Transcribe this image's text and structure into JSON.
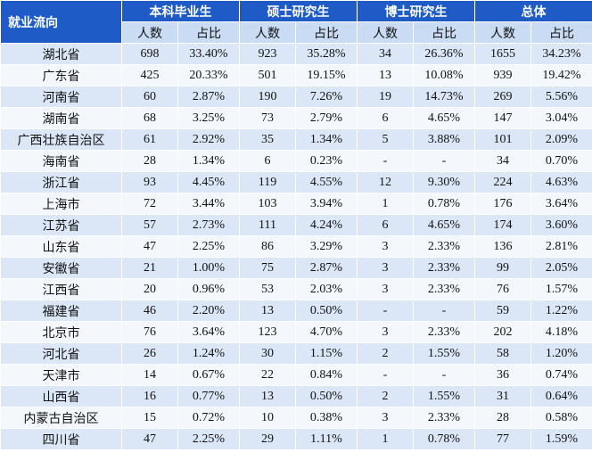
{
  "table": {
    "corner": "就业流向",
    "groups": [
      "本科毕业生",
      "硕士研究生",
      "博士研究生",
      "总体"
    ],
    "subheaders": [
      "人数",
      "占比",
      "人数",
      "占比",
      "人数",
      "占比",
      "人数",
      "占比"
    ],
    "rows": [
      [
        "湖北省",
        698,
        "33.40%",
        923,
        "35.28%",
        34,
        "26.36%",
        1655,
        "34.23%"
      ],
      [
        "广东省",
        425,
        "20.33%",
        501,
        "19.15%",
        13,
        "10.08%",
        939,
        "19.42%"
      ],
      [
        "河南省",
        60,
        "2.87%",
        190,
        "7.26%",
        19,
        "14.73%",
        269,
        "5.56%"
      ],
      [
        "湖南省",
        68,
        "3.25%",
        73,
        "2.79%",
        6,
        "4.65%",
        147,
        "3.04%"
      ],
      [
        "广西壮族自治区",
        61,
        "2.92%",
        35,
        "1.34%",
        5,
        "3.88%",
        101,
        "2.09%"
      ],
      [
        "海南省",
        28,
        "1.34%",
        6,
        "0.23%",
        "-",
        "-",
        34,
        "0.70%"
      ],
      [
        "浙江省",
        93,
        "4.45%",
        119,
        "4.55%",
        12,
        "9.30%",
        224,
        "4.63%"
      ],
      [
        "上海市",
        72,
        "3.44%",
        103,
        "3.94%",
        1,
        "0.78%",
        176,
        "3.64%"
      ],
      [
        "江苏省",
        57,
        "2.73%",
        111,
        "4.24%",
        6,
        "4.65%",
        174,
        "3.60%"
      ],
      [
        "山东省",
        47,
        "2.25%",
        86,
        "3.29%",
        3,
        "2.33%",
        136,
        "2.81%"
      ],
      [
        "安徽省",
        21,
        "1.00%",
        75,
        "2.87%",
        3,
        "2.33%",
        99,
        "2.05%"
      ],
      [
        "江西省",
        20,
        "0.96%",
        53,
        "2.03%",
        3,
        "2.33%",
        76,
        "1.57%"
      ],
      [
        "福建省",
        46,
        "2.20%",
        13,
        "0.50%",
        "-",
        "-",
        59,
        "1.22%"
      ],
      [
        "北京市",
        76,
        "3.64%",
        123,
        "4.70%",
        3,
        "2.33%",
        202,
        "4.18%"
      ],
      [
        "河北省",
        26,
        "1.24%",
        30,
        "1.15%",
        2,
        "1.55%",
        58,
        "1.20%"
      ],
      [
        "天津市",
        14,
        "0.67%",
        22,
        "0.84%",
        "-",
        "-",
        36,
        "0.74%"
      ],
      [
        "山西省",
        16,
        "0.77%",
        13,
        "0.50%",
        2,
        "1.55%",
        31,
        "0.64%"
      ],
      [
        "内蒙古自治区",
        15,
        "0.72%",
        10,
        "0.38%",
        3,
        "2.33%",
        28,
        "0.58%"
      ],
      [
        "四川省",
        47,
        "2.25%",
        29,
        "1.11%",
        1,
        "0.78%",
        77,
        "1.59%"
      ]
    ]
  }
}
